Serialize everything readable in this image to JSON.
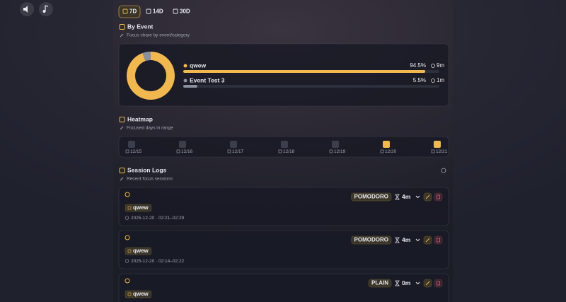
{
  "range_tabs": [
    {
      "label": "7D",
      "active": true
    },
    {
      "label": "14D",
      "active": false
    },
    {
      "label": "30D",
      "active": false
    }
  ],
  "by_event": {
    "title": "By Event",
    "subtitle": "Focus share by event/category",
    "events": [
      {
        "name": "qwew",
        "color": "#f0b84f",
        "share": 94.5,
        "share_label": "94.5%",
        "duration": "9m"
      },
      {
        "name": "Event Test 3",
        "color": "#8a8f9e",
        "share": 5.5,
        "share_label": "5.5%",
        "duration": "1m"
      }
    ]
  },
  "heatmap": {
    "title": "Heatmap",
    "subtitle": "Focused days in range",
    "days": [
      {
        "label": "12/15",
        "focused": false
      },
      {
        "label": "12/16",
        "focused": false
      },
      {
        "label": "12/17",
        "focused": false
      },
      {
        "label": "12/18",
        "focused": false
      },
      {
        "label": "12/19",
        "focused": false
      },
      {
        "label": "12/20",
        "focused": true
      },
      {
        "label": "12/21",
        "focused": true
      }
    ]
  },
  "session_logs": {
    "title": "Session Logs",
    "subtitle": "Recent focus sessions",
    "entries": [
      {
        "mode": "POMODORO",
        "duration": "4m",
        "tag": "qwew",
        "time": "2025-12-20 · 02:21–02:29"
      },
      {
        "mode": "POMODORO",
        "duration": "4m",
        "tag": "qwew",
        "time": "2025-12-20 · 02:14–02:22"
      },
      {
        "mode": "PLAIN",
        "duration": "0m",
        "tag": "qwew"
      }
    ]
  }
}
